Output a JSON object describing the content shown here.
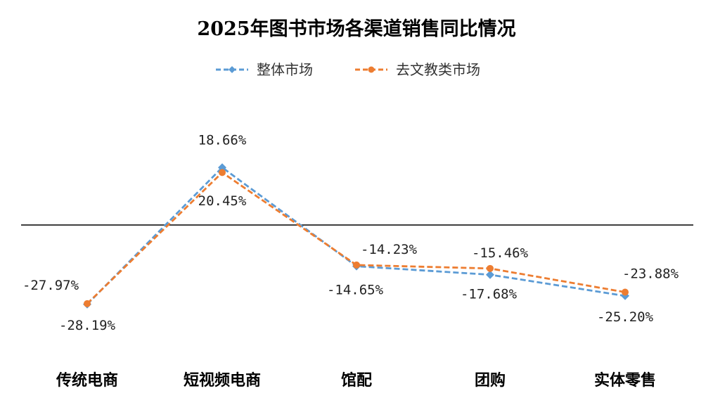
{
  "chart_data": {
    "type": "line",
    "title": "2025年图书市场各渠道销售同比情况",
    "categories": [
      "传统电商",
      "短视频电商",
      "馆配",
      "团购",
      "实体零售"
    ],
    "series": [
      {
        "name": "整体市场",
        "color": "#5b9bd5",
        "marker": "diamond",
        "values": [
          -28.19,
          20.45,
          -14.65,
          -17.68,
          -25.2
        ],
        "labels": [
          "-28.19%",
          "20.45%",
          "-14.65%",
          "-17.68%",
          "-25.20%"
        ]
      },
      {
        "name": "去文教类市场",
        "color": "#ed7d31",
        "marker": "circle",
        "values": [
          -27.97,
          18.66,
          -14.23,
          -15.46,
          -23.88
        ],
        "labels": [
          "-27.97%",
          "18.66%",
          "-14.23%",
          "-15.46%",
          "-23.88%"
        ]
      }
    ],
    "ylim": [
      -40,
      30
    ],
    "zero_line": true,
    "legend_position": "top-center",
    "xlabel": "",
    "ylabel": ""
  }
}
